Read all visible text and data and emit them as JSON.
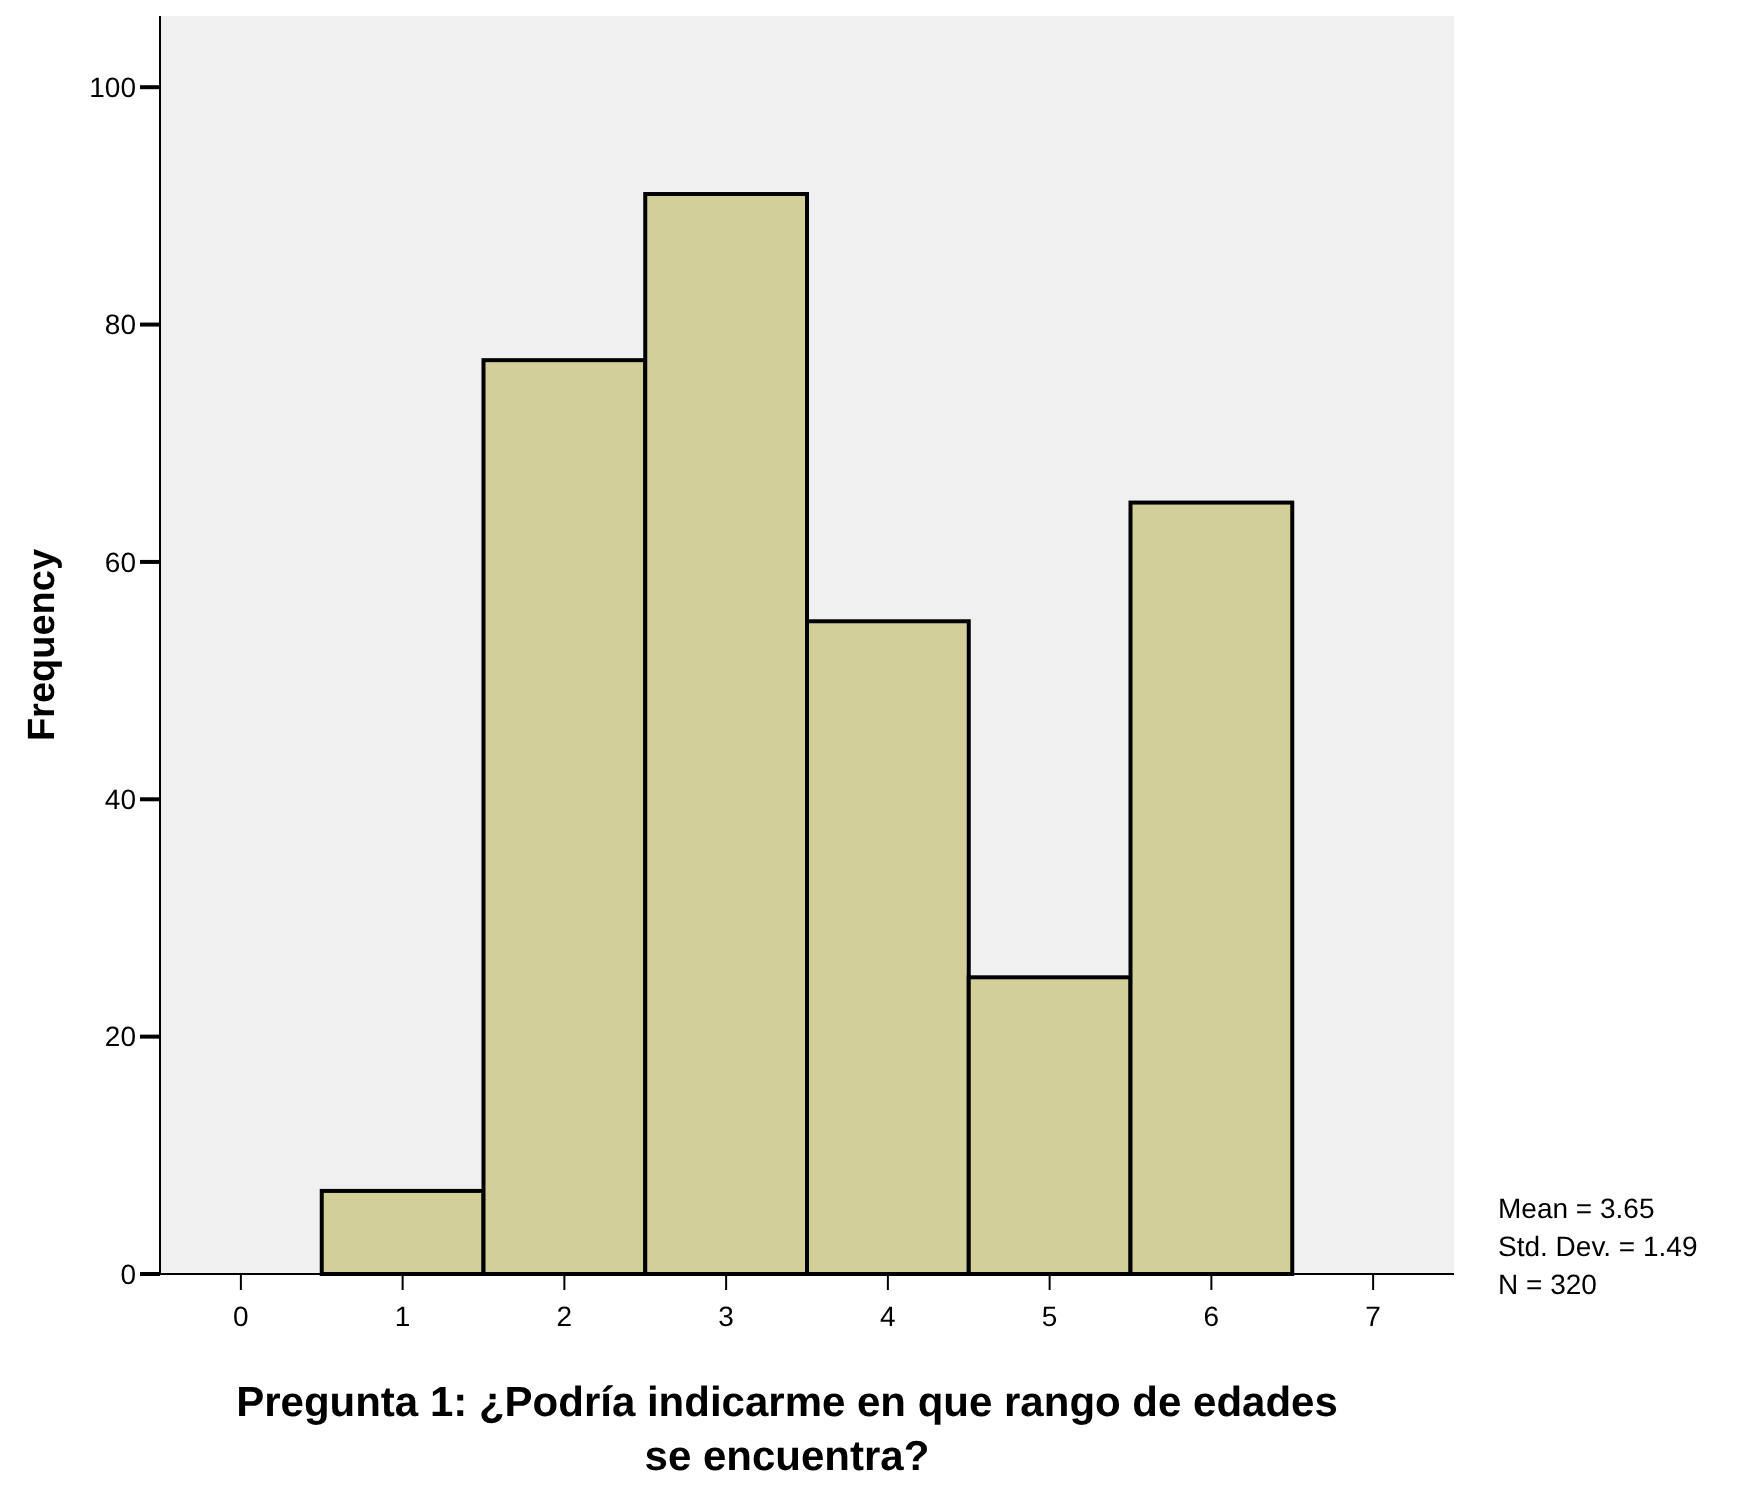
{
  "chart_data": {
    "type": "histogram",
    "xlabel": "Pregunta 1: ¿Podría indicarme en que rango de edades se encuentra?",
    "ylabel": "Frequency",
    "bins": [
      0.5,
      1.5,
      2.5,
      3.5,
      4.5,
      5.5,
      6.5
    ],
    "values": [
      7,
      77,
      91,
      55,
      25,
      65
    ],
    "color": "#d3cf98",
    "xlim": [
      -0.5,
      7.5
    ],
    "xticks": [
      0,
      1,
      2,
      3,
      4,
      5,
      6,
      7
    ],
    "ylim": [
      0,
      106
    ],
    "yticks": [
      0,
      20,
      40,
      60,
      80,
      100
    ],
    "annotations": [
      "Mean = 3.65",
      "Std. Dev. = 1.49",
      "N = 320"
    ]
  }
}
